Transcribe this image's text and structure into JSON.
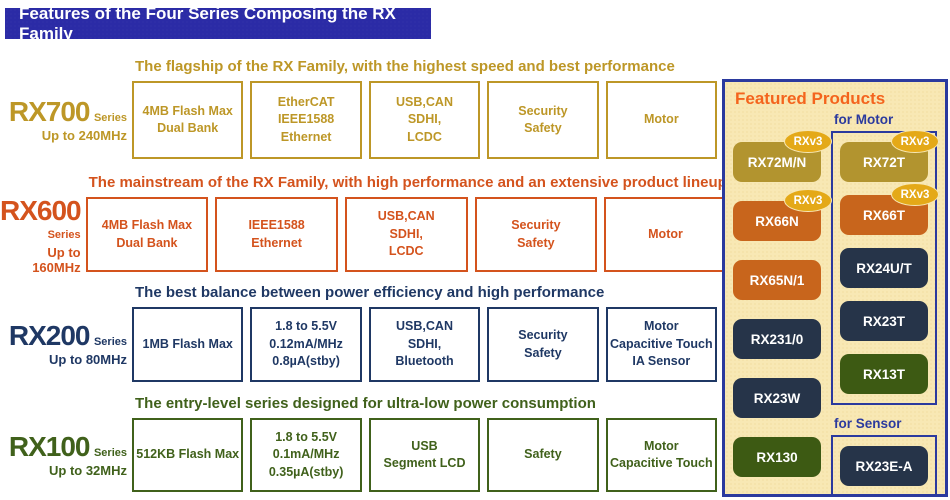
{
  "banner": {
    "title": "Features of the Four Series Composing the RX Family"
  },
  "series": [
    {
      "name": "RX700",
      "suffix": "Series",
      "clock": "Up to 240MHz",
      "headline": "The flagship of the RX Family, with the highest speed and best performance",
      "color": "#BD9727",
      "boxes": [
        "4MB Flash Max\nDual Bank",
        "EtherCAT\nIEEE1588\nEthernet",
        "USB,CAN\nSDHI,\nLCDC",
        "Security\nSafety",
        "Motor"
      ]
    },
    {
      "name": "RX600",
      "suffix": "Series",
      "clock": "Up to 160MHz",
      "headline": "The mainstream of the RX Family, with high performance and an extensive product lineup",
      "color": "#D4531D",
      "boxes": [
        "4MB Flash Max\nDual Bank",
        "IEEE1588\nEthernet",
        "USB,CAN\nSDHI,\nLCDC",
        "Security\nSafety",
        "Motor"
      ]
    },
    {
      "name": "RX200",
      "suffix": "Series",
      "clock": "Up to 80MHz",
      "headline": "The best balance between power efficiency and high performance",
      "color": "#1F3864",
      "boxes": [
        "1MB Flash Max",
        "1.8 to 5.5V\n0.12mA/MHz\n0.8µA(stby)",
        "USB,CAN\nSDHI,\nBluetooth",
        "Security\nSafety",
        "Motor\nCapacitive Touch\nIA Sensor"
      ]
    },
    {
      "name": "RX100",
      "suffix": "Series",
      "clock": "Up to 32MHz",
      "headline": "The entry-level series designed for ultra-low power consumption",
      "color": "#40611B",
      "boxes": [
        "512KB Flash Max",
        "1.8 to 5.5V\n0.1mA/MHz\n0.35µA(stby)",
        "USB\nSegment LCD",
        "Safety",
        "Motor\nCapacitive Touch"
      ]
    }
  ],
  "featured": {
    "title": "Featured Products",
    "motor_label": "for Motor",
    "sensor_label": "for Sensor",
    "badge_label": "RXv3",
    "left_chips": [
      {
        "label": "RX72M/N",
        "color": "gold",
        "badge": true
      },
      {
        "label": "RX66N",
        "color": "orange",
        "badge": true
      },
      {
        "label": "RX65N/1",
        "color": "orange",
        "badge": false
      },
      {
        "label": "RX231/0",
        "color": "navy",
        "badge": false
      },
      {
        "label": "RX23W",
        "color": "navy",
        "badge": false
      },
      {
        "label": "RX130",
        "color": "green",
        "badge": false
      }
    ],
    "motor_chips": [
      {
        "label": "RX72T",
        "color": "gold",
        "badge": true
      },
      {
        "label": "RX66T",
        "color": "orange",
        "badge": true
      },
      {
        "label": "RX24U/T",
        "color": "navy",
        "badge": false
      },
      {
        "label": "RX23T",
        "color": "navy",
        "badge": false
      },
      {
        "label": "RX13T",
        "color": "green",
        "badge": false
      }
    ],
    "sensor_chips": [
      {
        "label": "RX23E-A",
        "color": "navy",
        "badge": false
      }
    ]
  },
  "colors": {
    "banner_bg": "#2B2BA6",
    "rx700": "#BD9727",
    "rx600": "#D4531D",
    "rx200": "#1F3864",
    "rx100": "#40611B",
    "panel_border": "#2B3A9E",
    "panel_bg": "#F8E8B4",
    "panel_title": "#F4641D",
    "chip_gold": "#B2942F",
    "chip_orange": "#C8651C",
    "chip_navy": "#263449",
    "chip_green": "#3D5A13",
    "badge_bg": "#E4A918"
  }
}
